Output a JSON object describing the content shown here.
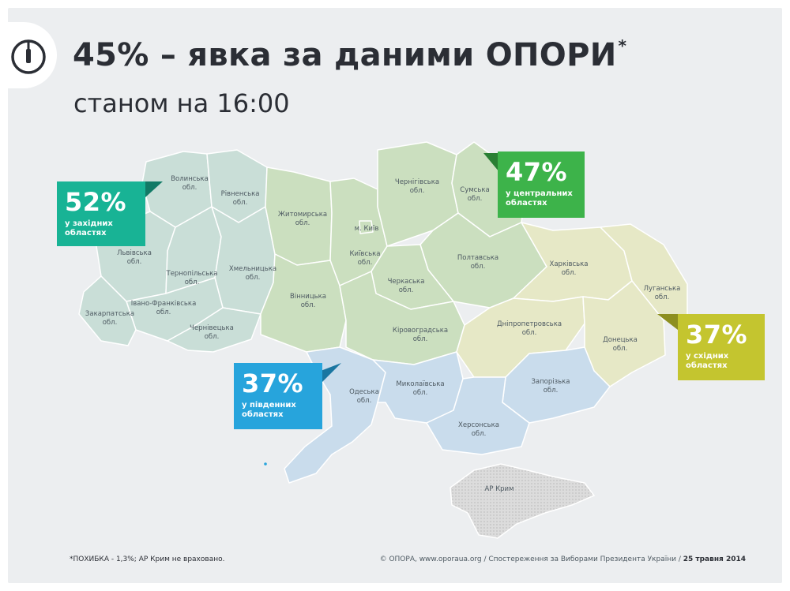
{
  "header": {
    "title": "45% – явка за даними ОПОРИ",
    "title_mark": "*",
    "subtitle": "станом на 16:00",
    "logo_icon": "opora-logo-icon"
  },
  "colors": {
    "west": "#18b395",
    "center": "#3db34a",
    "south": "#27a4dc",
    "east": "#c4c52f",
    "west_fill": "#c9ded7",
    "center_fill": "#cbdfbf",
    "south_fill": "#c9dcec",
    "east_fill": "#e6e8c6",
    "crimea_fill": "#dcdcdc"
  },
  "badges": {
    "west": {
      "pct": "52%",
      "caption": "у західних областях"
    },
    "center": {
      "pct": "47%",
      "caption": "у центральних областях"
    },
    "east": {
      "pct": "37%",
      "caption": "у східних областях"
    },
    "south": {
      "pct": "37%",
      "caption": "у південних областях"
    }
  },
  "regions": {
    "volynska": [
      "Волинська",
      "обл."
    ],
    "rivnenska": [
      "Рівненська",
      "обл."
    ],
    "lvivska": [
      "Львівська",
      "обл."
    ],
    "ternopilska": [
      "Тернопільська",
      "обл."
    ],
    "khmelnytska": [
      "Хмельницька",
      "обл."
    ],
    "ivano_frankivska": [
      "Івано-Франківська",
      "обл."
    ],
    "zakarpatska": [
      "Закарпатська",
      "обл."
    ],
    "chernivetska": [
      "Чернівецька",
      "обл."
    ],
    "zhytomyrska": [
      "Житомирська",
      "обл."
    ],
    "kyiv_city": [
      "м. Київ"
    ],
    "kyivska": [
      "Київська",
      "обл."
    ],
    "chernihivska": [
      "Чернігівська",
      "обл."
    ],
    "sumska": [
      "Сумська",
      "обл."
    ],
    "poltavska": [
      "Полтавська",
      "обл."
    ],
    "cherkaska": [
      "Черкаська",
      "обл."
    ],
    "vinnytska": [
      "Вінницька",
      "обл."
    ],
    "kirovohradska": [
      "Кіровоградська",
      "обл."
    ],
    "kharkivska": [
      "Харківська",
      "обл."
    ],
    "luhanska": [
      "Луганська",
      "обл."
    ],
    "dnipropetrovska": [
      "Дніпропетровська",
      "обл."
    ],
    "donetska": [
      "Донецька",
      "обл."
    ],
    "odeska": [
      "Одеська",
      "обл."
    ],
    "mykolaivska": [
      "Миколаївська",
      "обл."
    ],
    "zaporizka": [
      "Запорізька",
      "обл."
    ],
    "khersonska": [
      "Херсонська",
      "обл."
    ],
    "crimea": [
      "АР Крим"
    ]
  },
  "footer": {
    "note": "*ПОХИБКА - 1,3%; АР Крим не враховано.",
    "source": "© ОПОРА, www.oporaua.org / Спостереження за Виборами Президента України /",
    "date": "25 травня 2014"
  }
}
